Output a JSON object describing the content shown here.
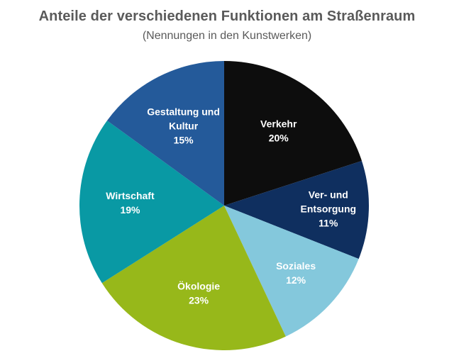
{
  "chart_data": {
    "type": "pie",
    "title": "Anteile der verschiedenen Funktionen am Straßenraum",
    "subtitle": "(Nennungen in den Kunstwerken)",
    "start_angle_deg": 0,
    "direction": "clockwise",
    "slices": [
      {
        "name": "Verkehr",
        "label_lines": [
          "Verkehr"
        ],
        "value": 20,
        "value_label": "20%",
        "color": "#0d0d0d"
      },
      {
        "name": "Ver- und Entsorgung",
        "label_lines": [
          "Ver- und",
          "Entsorgung"
        ],
        "value": 11,
        "value_label": "11%",
        "color": "#0f2f5f"
      },
      {
        "name": "Soziales",
        "label_lines": [
          "Soziales"
        ],
        "value": 12,
        "value_label": "12%",
        "color": "#84c8dc"
      },
      {
        "name": "Ökologie",
        "label_lines": [
          "Ökologie"
        ],
        "value": 23,
        "value_label": "23%",
        "color": "#97b81a"
      },
      {
        "name": "Wirtschaft",
        "label_lines": [
          "Wirtschaft"
        ],
        "value": 19,
        "value_label": "19%",
        "color": "#0999a4"
      },
      {
        "name": "Gestaltung und Kultur",
        "label_lines": [
          "Gestaltung und",
          "Kultur"
        ],
        "value": 15,
        "value_label": "15%",
        "color": "#245a9a"
      }
    ]
  }
}
